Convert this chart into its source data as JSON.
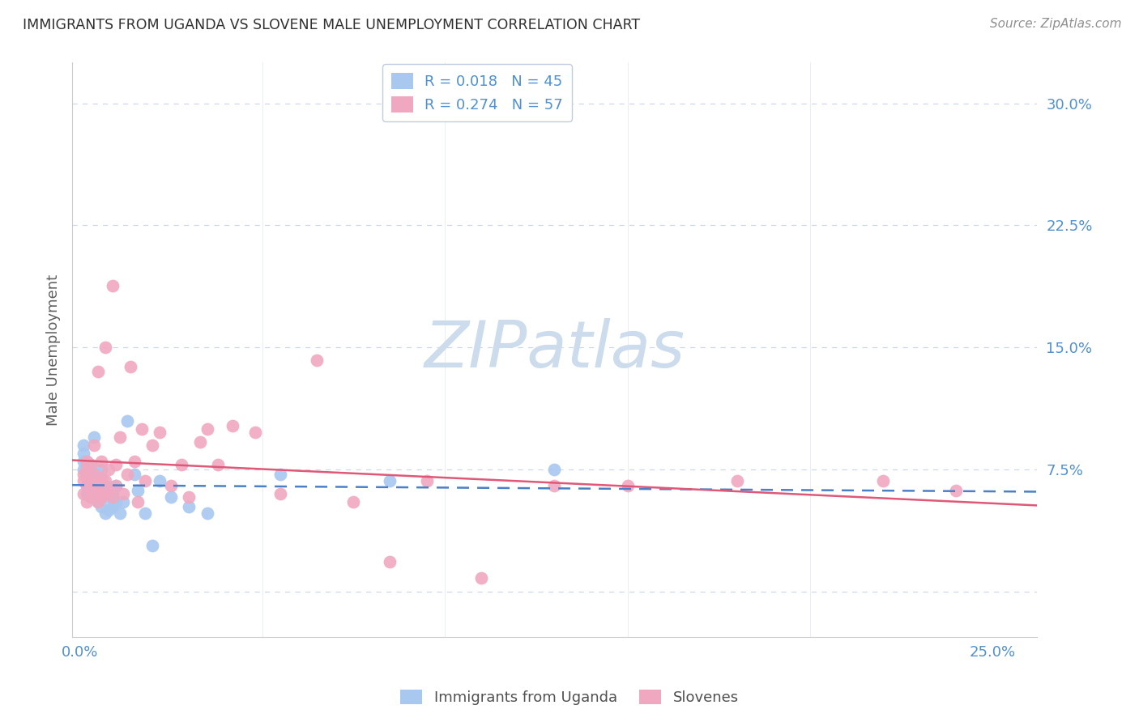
{
  "title": "IMMIGRANTS FROM UGANDA VS SLOVENE MALE UNEMPLOYMENT CORRELATION CHART",
  "source": "Source: ZipAtlas.com",
  "ylabel": "Male Unemployment",
  "y_ticks": [
    0.0,
    0.075,
    0.15,
    0.225,
    0.3
  ],
  "y_tick_labels": [
    "",
    "7.5%",
    "15.0%",
    "22.5%",
    "30.0%"
  ],
  "x_tick_labels": [
    "0.0%",
    "25.0%"
  ],
  "x_ticks": [
    0.0,
    0.25
  ],
  "xlim": [
    -0.002,
    0.262
  ],
  "ylim": [
    -0.028,
    0.325
  ],
  "series1_color": "#a8c8f0",
  "series2_color": "#f0a8c0",
  "line1_color": "#4a80c8",
  "line2_color": "#e05878",
  "legend_label1": "R = 0.018   N = 45",
  "legend_label2": "R = 0.274   N = 57",
  "bottom_legend_label1": "Immigrants from Uganda",
  "bottom_legend_label2": "Slovenes",
  "watermark": "ZIPatlas",
  "watermark_color": "#ccdcec",
  "background_color": "#ffffff",
  "grid_color": "#ccd8e8",
  "tick_color": "#5090d0",
  "title_color": "#303030",
  "source_color": "#909090",
  "scatter1_x": [
    0.001,
    0.001,
    0.001,
    0.001,
    0.002,
    0.002,
    0.002,
    0.002,
    0.002,
    0.003,
    0.003,
    0.003,
    0.003,
    0.004,
    0.004,
    0.004,
    0.005,
    0.005,
    0.005,
    0.005,
    0.006,
    0.006,
    0.006,
    0.007,
    0.007,
    0.008,
    0.008,
    0.009,
    0.009,
    0.01,
    0.01,
    0.011,
    0.012,
    0.013,
    0.015,
    0.016,
    0.018,
    0.02,
    0.022,
    0.025,
    0.03,
    0.035,
    0.055,
    0.085,
    0.13
  ],
  "scatter1_y": [
    0.075,
    0.08,
    0.085,
    0.09,
    0.06,
    0.065,
    0.07,
    0.075,
    0.08,
    0.065,
    0.068,
    0.072,
    0.078,
    0.058,
    0.062,
    0.095,
    0.055,
    0.06,
    0.068,
    0.072,
    0.052,
    0.058,
    0.075,
    0.048,
    0.065,
    0.05,
    0.058,
    0.052,
    0.06,
    0.055,
    0.065,
    0.048,
    0.055,
    0.105,
    0.072,
    0.062,
    0.048,
    0.028,
    0.068,
    0.058,
    0.052,
    0.048,
    0.072,
    0.068,
    0.075
  ],
  "scatter2_x": [
    0.001,
    0.001,
    0.001,
    0.002,
    0.002,
    0.002,
    0.002,
    0.003,
    0.003,
    0.003,
    0.004,
    0.004,
    0.004,
    0.005,
    0.005,
    0.005,
    0.006,
    0.006,
    0.006,
    0.007,
    0.007,
    0.007,
    0.008,
    0.008,
    0.009,
    0.009,
    0.01,
    0.01,
    0.011,
    0.012,
    0.013,
    0.014,
    0.015,
    0.016,
    0.017,
    0.018,
    0.02,
    0.022,
    0.025,
    0.028,
    0.03,
    0.033,
    0.035,
    0.038,
    0.042,
    0.048,
    0.055,
    0.065,
    0.075,
    0.085,
    0.095,
    0.11,
    0.13,
    0.15,
    0.18,
    0.22,
    0.24
  ],
  "scatter2_y": [
    0.06,
    0.068,
    0.072,
    0.055,
    0.065,
    0.075,
    0.08,
    0.058,
    0.068,
    0.078,
    0.062,
    0.072,
    0.09,
    0.055,
    0.065,
    0.135,
    0.058,
    0.07,
    0.08,
    0.06,
    0.068,
    0.15,
    0.062,
    0.075,
    0.058,
    0.188,
    0.065,
    0.078,
    0.095,
    0.06,
    0.072,
    0.138,
    0.08,
    0.055,
    0.1,
    0.068,
    0.09,
    0.098,
    0.065,
    0.078,
    0.058,
    0.092,
    0.1,
    0.078,
    0.102,
    0.098,
    0.06,
    0.142,
    0.055,
    0.018,
    0.068,
    0.008,
    0.065,
    0.065,
    0.068,
    0.068,
    0.062
  ]
}
